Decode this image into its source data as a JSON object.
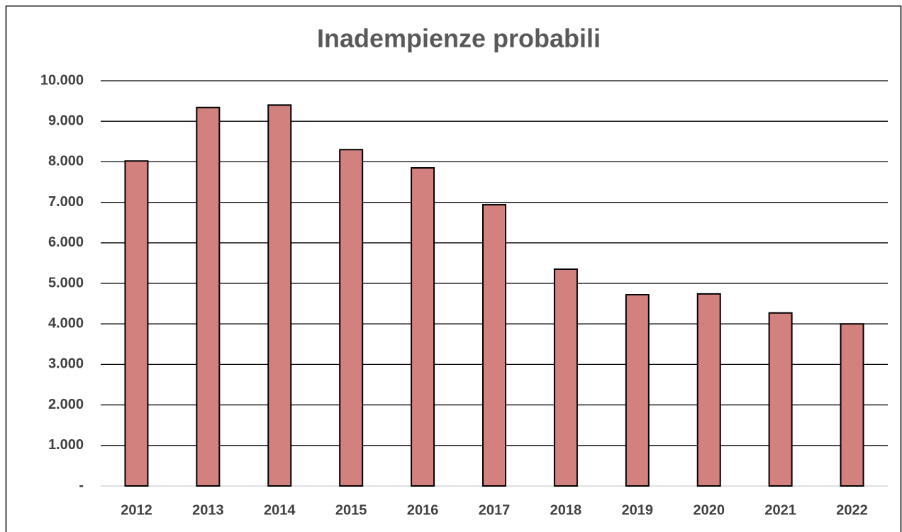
{
  "chart_data": {
    "type": "bar",
    "title": "Inadempienze probabili",
    "categories": [
      "2012",
      "2013",
      "2014",
      "2015",
      "2016",
      "2017",
      "2018",
      "2019",
      "2020",
      "2021",
      "2022"
    ],
    "values": [
      8020,
      9340,
      9400,
      8300,
      7850,
      6940,
      5350,
      4720,
      4740,
      4270,
      4000
    ],
    "color": "#d3817f",
    "ylim": [
      0,
      10000
    ],
    "yticks": [
      {
        "value": 0,
        "label": "-"
      },
      {
        "value": 1000,
        "label": "1.000"
      },
      {
        "value": 2000,
        "label": "2.000"
      },
      {
        "value": 3000,
        "label": "3.000"
      },
      {
        "value": 4000,
        "label": "4.000"
      },
      {
        "value": 5000,
        "label": "5.000"
      },
      {
        "value": 6000,
        "label": "6.000"
      },
      {
        "value": 7000,
        "label": "7.000"
      },
      {
        "value": 8000,
        "label": "8.000"
      },
      {
        "value": 9000,
        "label": "9.000"
      },
      {
        "value": 10000,
        "label": "10.000"
      }
    ],
    "grid": true
  }
}
